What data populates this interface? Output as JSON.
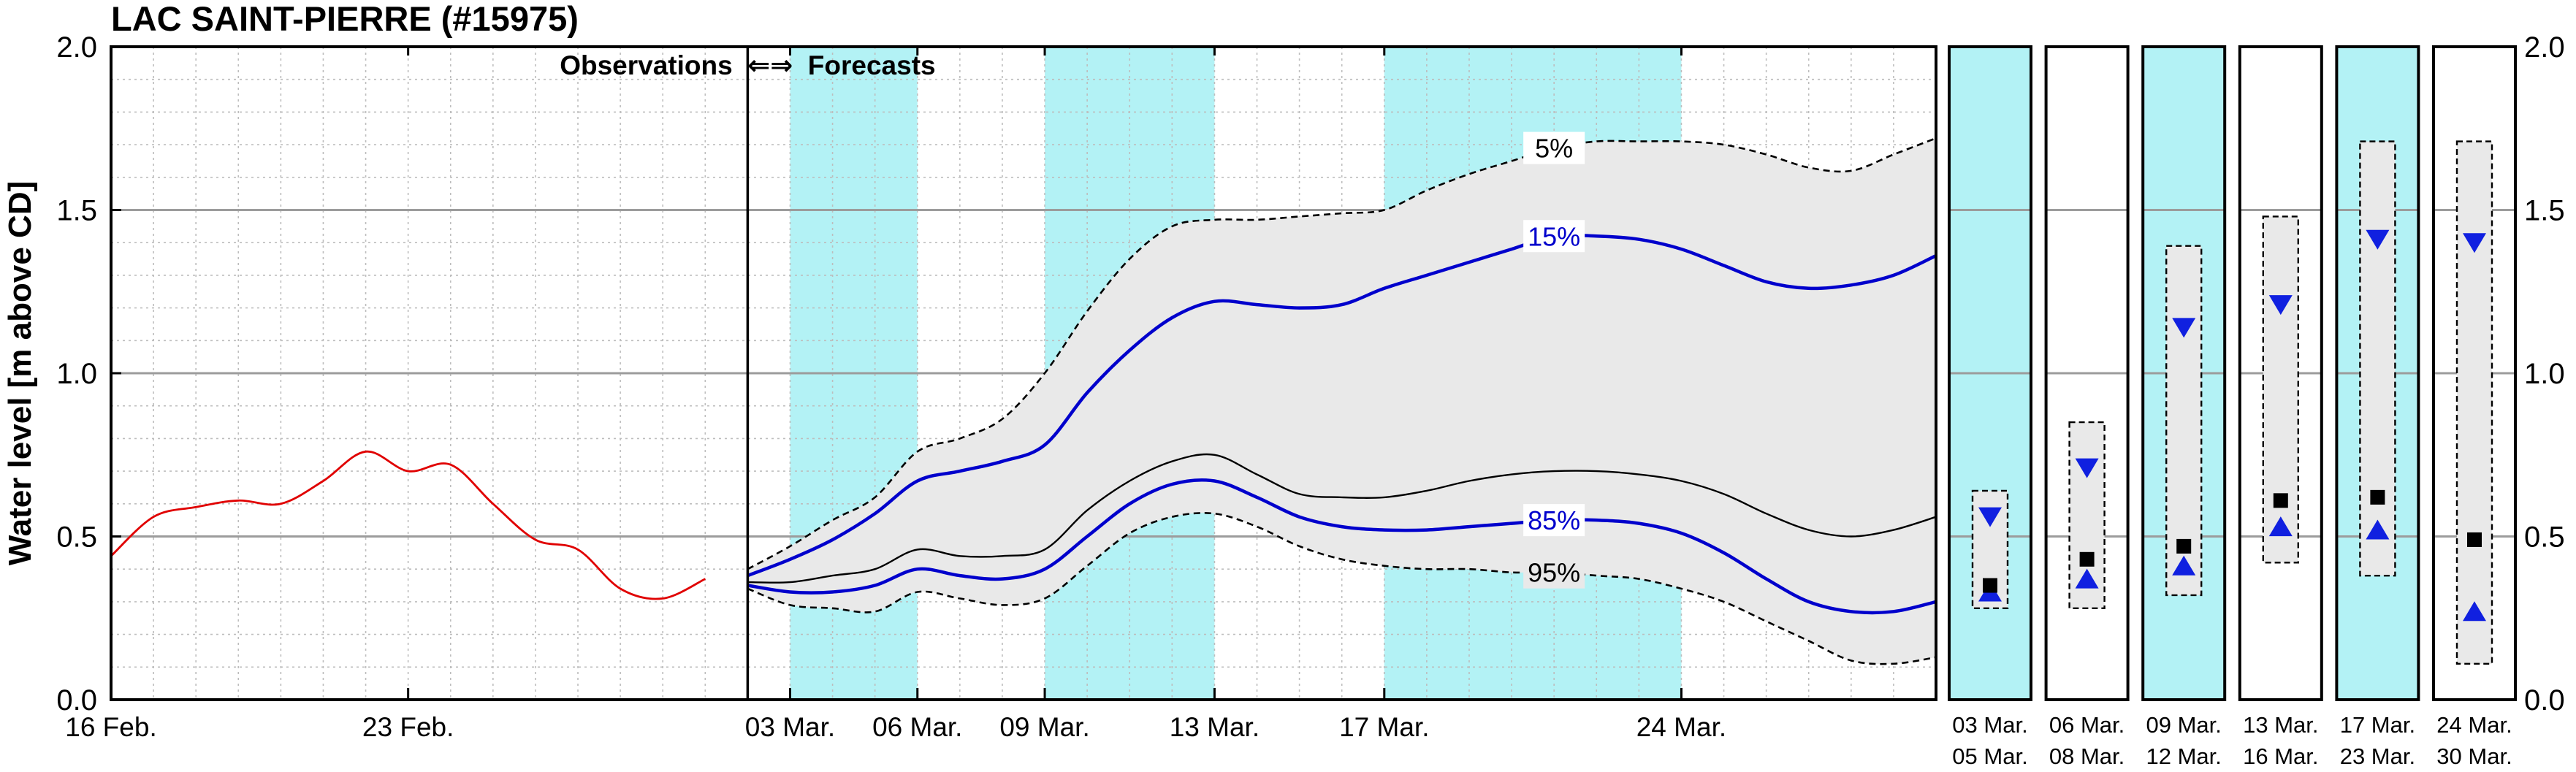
{
  "colors": {
    "observed": "#e00000",
    "quantile_15_85": "#0000cc",
    "median": "#000000",
    "envelope": "#e9e9e9",
    "shade": "#b3f2f5",
    "marker_blue": "#1020e0",
    "marker_median": "#000000"
  },
  "chart_data": {
    "type": "line",
    "title": "LAC SAINT-PIERRE (#15975)",
    "ylabel": "Water level [m above CD]",
    "ylim": [
      0.0,
      2.0
    ],
    "y_ticks": [
      "0.0",
      "0.5",
      "1.0",
      "1.5",
      "2.0"
    ],
    "y_tick_values": [
      0.0,
      0.5,
      1.0,
      1.5,
      2.0
    ],
    "x_unit": "date",
    "xlim": [
      "2024-02-16",
      "2024-03-30"
    ],
    "x_tick_labels": [
      {
        "date": "2024-02-16",
        "label": "16 Feb."
      },
      {
        "date": "2024-02-23",
        "label": "23 Feb."
      },
      {
        "date": "2024-03-03",
        "label": "03 Mar."
      },
      {
        "date": "2024-03-06",
        "label": "06 Mar."
      },
      {
        "date": "2024-03-09",
        "label": "09 Mar."
      },
      {
        "date": "2024-03-13",
        "label": "13 Mar."
      },
      {
        "date": "2024-03-17",
        "label": "17 Mar."
      },
      {
        "date": "2024-03-24",
        "label": "24 Mar."
      }
    ],
    "grid": true,
    "divider_date": "2024-03-02",
    "divider_label": "Observations  ⇐⇒  Forecasts",
    "shaded_periods": [
      [
        "2024-03-03",
        "2024-03-06"
      ],
      [
        "2024-03-09",
        "2024-03-13"
      ],
      [
        "2024-03-17",
        "2024-03-24"
      ]
    ],
    "observations": {
      "x": [
        "2024-02-16",
        "2024-02-17",
        "2024-02-18",
        "2024-02-19",
        "2024-02-20",
        "2024-02-21",
        "2024-02-22",
        "2024-02-23",
        "2024-02-24",
        "2024-02-25",
        "2024-02-26",
        "2024-02-27",
        "2024-02-28",
        "2024-02-29",
        "2024-03-01"
      ],
      "y": [
        0.44,
        0.56,
        0.59,
        0.61,
        0.6,
        0.67,
        0.76,
        0.7,
        0.72,
        0.6,
        0.49,
        0.46,
        0.34,
        0.31,
        0.37
      ]
    },
    "forecast_x": [
      "2024-03-02",
      "2024-03-03",
      "2024-03-04",
      "2024-03-05",
      "2024-03-06",
      "2024-03-07",
      "2024-03-08",
      "2024-03-09",
      "2024-03-10",
      "2024-03-11",
      "2024-03-12",
      "2024-03-13",
      "2024-03-14",
      "2024-03-15",
      "2024-03-16",
      "2024-03-17",
      "2024-03-18",
      "2024-03-19",
      "2024-03-20",
      "2024-03-21",
      "2024-03-22",
      "2024-03-23",
      "2024-03-24",
      "2024-03-25",
      "2024-03-26",
      "2024-03-27",
      "2024-03-28",
      "2024-03-29",
      "2024-03-30"
    ],
    "quantiles": [
      {
        "label": "5%",
        "style": "dashed",
        "label_date": "2024-03-21",
        "y": [
          0.4,
          0.47,
          0.55,
          0.62,
          0.76,
          0.8,
          0.86,
          1.0,
          1.19,
          1.35,
          1.45,
          1.47,
          1.47,
          1.48,
          1.49,
          1.5,
          1.56,
          1.61,
          1.65,
          1.69,
          1.71,
          1.71,
          1.71,
          1.7,
          1.67,
          1.63,
          1.62,
          1.67,
          1.72
        ]
      },
      {
        "label": "15%",
        "style": "blue",
        "label_date": "2024-03-21",
        "y": [
          0.38,
          0.43,
          0.49,
          0.57,
          0.67,
          0.7,
          0.73,
          0.78,
          0.94,
          1.07,
          1.17,
          1.22,
          1.21,
          1.2,
          1.21,
          1.26,
          1.3,
          1.34,
          1.38,
          1.42,
          1.42,
          1.41,
          1.38,
          1.33,
          1.28,
          1.26,
          1.27,
          1.3,
          1.36
        ]
      },
      {
        "label": "",
        "style": "median",
        "y": [
          0.36,
          0.36,
          0.38,
          0.4,
          0.46,
          0.44,
          0.44,
          0.46,
          0.58,
          0.67,
          0.73,
          0.75,
          0.69,
          0.63,
          0.62,
          0.62,
          0.64,
          0.67,
          0.69,
          0.7,
          0.7,
          0.69,
          0.67,
          0.63,
          0.57,
          0.52,
          0.5,
          0.52,
          0.56
        ]
      },
      {
        "label": "85%",
        "style": "blue",
        "label_date": "2024-03-21",
        "y": [
          0.35,
          0.33,
          0.33,
          0.35,
          0.4,
          0.38,
          0.37,
          0.4,
          0.5,
          0.6,
          0.66,
          0.67,
          0.62,
          0.56,
          0.53,
          0.52,
          0.52,
          0.53,
          0.54,
          0.55,
          0.55,
          0.54,
          0.51,
          0.45,
          0.37,
          0.3,
          0.27,
          0.27,
          0.3
        ]
      },
      {
        "label": "95%",
        "style": "dashed",
        "label_date": "2024-03-21",
        "y": [
          0.34,
          0.29,
          0.28,
          0.27,
          0.33,
          0.31,
          0.29,
          0.31,
          0.41,
          0.51,
          0.56,
          0.57,
          0.53,
          0.47,
          0.43,
          0.41,
          0.4,
          0.4,
          0.39,
          0.39,
          0.38,
          0.37,
          0.34,
          0.3,
          0.24,
          0.18,
          0.12,
          0.11,
          0.13
        ]
      }
    ],
    "weekly_panels": [
      {
        "label_top": "03  Mar.",
        "label_bottom": "05  Mar.",
        "shaded": true,
        "box": [
          0.28,
          0.64
        ],
        "upper": 0.56,
        "median": 0.35,
        "lower": 0.33
      },
      {
        "label_top": "06  Mar.",
        "label_bottom": "08  Mar.",
        "shaded": false,
        "box": [
          0.28,
          0.85
        ],
        "upper": 0.71,
        "median": 0.43,
        "lower": 0.37
      },
      {
        "label_top": "09  Mar.",
        "label_bottom": "12  Mar.",
        "shaded": true,
        "box": [
          0.32,
          1.39
        ],
        "upper": 1.14,
        "median": 0.47,
        "lower": 0.41
      },
      {
        "label_top": "13  Mar.",
        "label_bottom": "16  Mar.",
        "shaded": false,
        "box": [
          0.42,
          1.48
        ],
        "upper": 1.21,
        "median": 0.61,
        "lower": 0.53
      },
      {
        "label_top": "17  Mar.",
        "label_bottom": "23  Mar.",
        "shaded": true,
        "box": [
          0.38,
          1.71
        ],
        "upper": 1.41,
        "median": 0.62,
        "lower": 0.52
      },
      {
        "label_top": "24  Mar.",
        "label_bottom": "30  Mar.",
        "shaded": false,
        "box": [
          0.11,
          1.71
        ],
        "upper": 1.4,
        "median": 0.49,
        "lower": 0.27
      }
    ]
  }
}
